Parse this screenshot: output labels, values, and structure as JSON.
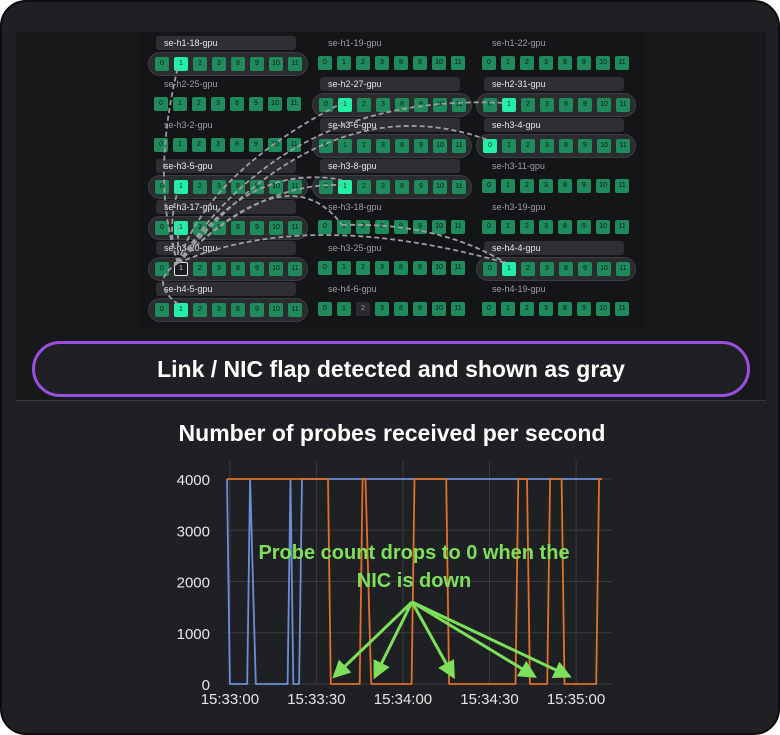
{
  "gpu_map": {
    "ports": [
      "0",
      "1",
      "2",
      "3",
      "8",
      "9",
      "10",
      "11"
    ],
    "rows": [
      {
        "cells": [
          {
            "host": "se-h1-18-gpu",
            "highlight": true,
            "states": [
              "n",
              "b",
              "n",
              "n",
              "n",
              "n",
              "n",
              "n"
            ]
          },
          {
            "host": "se-h1-19-gpu",
            "highlight": false,
            "states": [
              "n",
              "n",
              "n",
              "n",
              "n",
              "n",
              "n",
              "n"
            ]
          },
          {
            "host": "se-h1-22-gpu",
            "highlight": false,
            "states": [
              "n",
              "n",
              "n",
              "n",
              "n",
              "n",
              "n",
              "n"
            ]
          }
        ]
      },
      {
        "cells": [
          {
            "host": "se-h2-25-gpu",
            "highlight": false,
            "states": [
              "n",
              "n",
              "n",
              "n",
              "n",
              "n",
              "n",
              "n"
            ]
          },
          {
            "host": "se-h2-27-gpu",
            "highlight": true,
            "states": [
              "n",
              "b",
              "n",
              "n",
              "n",
              "n",
              "n",
              "n"
            ]
          },
          {
            "host": "se-h2-31-gpu",
            "highlight": true,
            "states": [
              "n",
              "b",
              "n",
              "n",
              "n",
              "n",
              "n",
              "n"
            ]
          }
        ]
      },
      {
        "cells": [
          {
            "host": "se-h3-2-gpu",
            "highlight": false,
            "states": [
              "n",
              "n",
              "n",
              "n",
              "n",
              "n",
              "n",
              "n"
            ]
          },
          {
            "host": "se-h3-6-gpu",
            "highlight": true,
            "states": [
              "n",
              "n",
              "n",
              "n",
              "n",
              "n",
              "n",
              "n"
            ]
          },
          {
            "host": "se-h3-4-gpu",
            "highlight": true,
            "states": [
              "b",
              "n",
              "n",
              "n",
              "n",
              "n",
              "n",
              "n"
            ]
          }
        ]
      },
      {
        "cells": [
          {
            "host": "se-h3-5-gpu",
            "highlight": true,
            "states": [
              "n",
              "b",
              "n",
              "n",
              "n",
              "n",
              "n",
              "n"
            ]
          },
          {
            "host": "se-h3-8-gpu",
            "highlight": true,
            "states": [
              "n",
              "b",
              "n",
              "n",
              "n",
              "n",
              "n",
              "n"
            ]
          },
          {
            "host": "se-h3-11-gpu",
            "highlight": false,
            "states": [
              "n",
              "n",
              "n",
              "n",
              "n",
              "n",
              "n",
              "n"
            ]
          }
        ]
      },
      {
        "cells": [
          {
            "host": "se-h3-17-gpu",
            "highlight": true,
            "states": [
              "n",
              "b",
              "n",
              "n",
              "n",
              "n",
              "n",
              "n"
            ]
          },
          {
            "host": "se-h3-18-gpu",
            "highlight": false,
            "states": [
              "n",
              "n",
              "n",
              "n",
              "n",
              "n",
              "n",
              "n"
            ]
          },
          {
            "host": "se-h3-19-gpu",
            "highlight": false,
            "states": [
              "n",
              "n",
              "n",
              "n",
              "n",
              "n",
              "n",
              "n"
            ]
          }
        ]
      },
      {
        "cells": [
          {
            "host": "se-h3-20-gpu",
            "highlight": true,
            "states": [
              "n",
              "o",
              "n",
              "n",
              "n",
              "n",
              "n",
              "n"
            ]
          },
          {
            "host": "se-h3-25-gpu",
            "highlight": false,
            "states": [
              "n",
              "n",
              "n",
              "n",
              "n",
              "n",
              "n",
              "n"
            ]
          },
          {
            "host": "se-h4-4-gpu",
            "highlight": true,
            "states": [
              "n",
              "b",
              "n",
              "n",
              "n",
              "n",
              "n",
              "n"
            ]
          }
        ]
      },
      {
        "cells": [
          {
            "host": "se-h4-5-gpu",
            "highlight": true,
            "states": [
              "n",
              "b",
              "n",
              "n",
              "n",
              "n",
              "n",
              "n"
            ]
          },
          {
            "host": "se-h4-6-gpu",
            "highlight": false,
            "states": [
              "n",
              "n",
              "g",
              "n",
              "n",
              "n",
              "n",
              "n"
            ]
          },
          {
            "host": "se-h4-19-gpu",
            "highlight": false,
            "states": [
              "n",
              "n",
              "n",
              "n",
              "n",
              "n",
              "n",
              "n"
            ]
          }
        ]
      }
    ]
  },
  "banner": {
    "text": "Link / NIC flap detected and shown as gray"
  },
  "chart_title": "Number of probes received per second",
  "annotation": {
    "line1": "Probe count drops to 0 when the",
    "line2": "NIC is down"
  },
  "colors": {
    "accent_border": "#9a4fe0",
    "annotation": "#7ee05a",
    "port_normal": "#1f8a5c",
    "port_bright": "#22f0a6",
    "port_gray": "#2a2b2e",
    "series_a": "#6b8fd6",
    "series_b": "#e0702a"
  },
  "chart_data": {
    "type": "line",
    "title": "Number of probes received per second",
    "y_ticks": [
      "0",
      "1000",
      "2000",
      "3000",
      "4000"
    ],
    "ylim": [
      0,
      4000
    ],
    "x_ticks": [
      "15:33:00",
      "15:33:30",
      "15:34:00",
      "15:34:30",
      "15:35:00"
    ],
    "grid": true,
    "series": [
      {
        "color": "#6b8fd6",
        "points": [
          [
            "15:32:59",
            4000
          ],
          [
            "15:33:00",
            0
          ],
          [
            "15:33:06",
            0
          ],
          [
            "15:33:07",
            4000
          ],
          [
            "15:33:09",
            0
          ],
          [
            "15:33:20",
            0
          ],
          [
            "15:33:21",
            4000
          ],
          [
            "15:33:22",
            0
          ],
          [
            "15:33:24",
            0
          ],
          [
            "15:33:25",
            4000
          ],
          [
            "15:35:09",
            4000
          ]
        ]
      },
      {
        "color": "#e0702a",
        "points": [
          [
            "15:32:59",
            4000
          ],
          [
            "15:33:34",
            4000
          ],
          [
            "15:33:35",
            0
          ],
          [
            "15:33:45",
            0
          ],
          [
            "15:33:46",
            4000
          ],
          [
            "15:33:47",
            4000
          ],
          [
            "15:33:49",
            0
          ],
          [
            "15:34:03",
            0
          ],
          [
            "15:34:04",
            4000
          ],
          [
            "15:34:15",
            4000
          ],
          [
            "15:34:16",
            0
          ],
          [
            "15:34:39",
            0
          ],
          [
            "15:34:40",
            4000
          ],
          [
            "15:34:43",
            4000
          ],
          [
            "15:34:44",
            0
          ],
          [
            "15:34:50",
            0
          ],
          [
            "15:34:51",
            4000
          ],
          [
            "15:34:55",
            4000
          ],
          [
            "15:34:56",
            0
          ],
          [
            "15:35:07",
            0
          ],
          [
            "15:35:08",
            4000
          ],
          [
            "15:35:09",
            4000
          ]
        ]
      }
    ]
  }
}
